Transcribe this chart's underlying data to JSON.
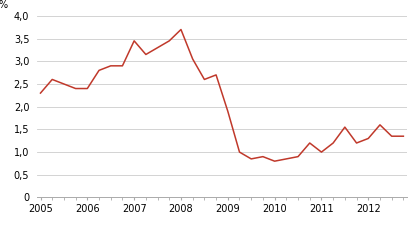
{
  "title": "",
  "ylabel": "%",
  "ylim": [
    0,
    4.0
  ],
  "yticks": [
    0,
    0.5,
    1.0,
    1.5,
    2.0,
    2.5,
    3.0,
    3.5,
    4.0
  ],
  "ytick_labels": [
    "0",
    "0,5",
    "1,0",
    "1,5",
    "2,0",
    "2,5",
    "3,0",
    "3,5",
    "4,0"
  ],
  "line_color": "#c0392b",
  "background_color": "#ffffff",
  "grid_color": "#cccccc",
  "values": [
    2.3,
    2.6,
    2.5,
    2.4,
    2.4,
    2.8,
    2.9,
    2.9,
    3.45,
    3.15,
    3.3,
    3.45,
    3.7,
    3.05,
    2.6,
    2.7,
    1.9,
    1.0,
    0.85,
    0.9,
    0.8,
    0.85,
    0.9,
    1.2,
    1.0,
    1.2,
    1.55,
    1.2,
    1.3,
    1.6,
    1.35,
    1.35
  ],
  "year_labels": [
    "2005",
    "2006",
    "2007",
    "2008",
    "2009",
    "2010",
    "2011",
    "2012"
  ]
}
